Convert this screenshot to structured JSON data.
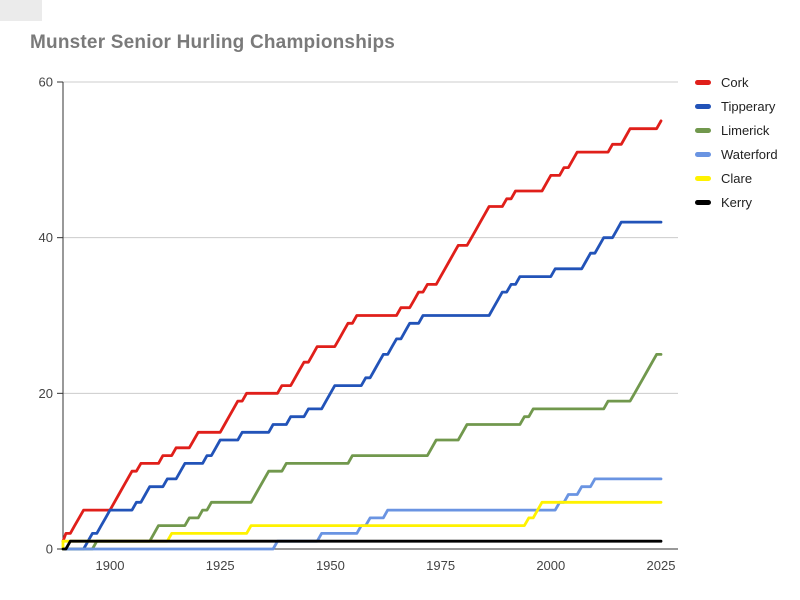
{
  "chart_data": {
    "type": "line",
    "title": "Munster Senior Hurling Championships",
    "xlabel": "",
    "ylabel": "",
    "x_ticks": [
      1900,
      1925,
      1950,
      1975,
      2000,
      2025
    ],
    "y_ticks": [
      0,
      20,
      40,
      60
    ],
    "x_range": [
      1889,
      2028
    ],
    "y_range": [
      0,
      60
    ],
    "grid": {
      "horizontal": true,
      "vertical": false,
      "color": "#cccccc",
      "baseline_color": "#333333"
    },
    "legend_position": "right",
    "series": [
      {
        "name": "Cork",
        "color": "#e01f1a",
        "final_total": 55,
        "win_years": [
          1888,
          1890,
          1892,
          1893,
          1894,
          1901,
          1902,
          1903,
          1904,
          1905,
          1907,
          1912,
          1915,
          1919,
          1920,
          1926,
          1927,
          1928,
          1929,
          1931,
          1939,
          1942,
          1943,
          1944,
          1946,
          1947,
          1952,
          1953,
          1954,
          1956,
          1966,
          1969,
          1970,
          1972,
          1975,
          1976,
          1977,
          1978,
          1979,
          1982,
          1983,
          1984,
          1985,
          1986,
          1990,
          1992,
          1999,
          2000,
          2003,
          2005,
          2006,
          2014,
          2017,
          2018,
          2025
        ]
      },
      {
        "name": "Tipperary",
        "color": "#2253b8",
        "final_total": 42,
        "win_years": [
          1895,
          1896,
          1898,
          1899,
          1900,
          1906,
          1908,
          1909,
          1913,
          1916,
          1917,
          1922,
          1924,
          1925,
          1930,
          1937,
          1941,
          1945,
          1949,
          1950,
          1951,
          1958,
          1960,
          1961,
          1962,
          1964,
          1965,
          1967,
          1968,
          1971,
          1987,
          1988,
          1989,
          1991,
          1993,
          2001,
          2008,
          2009,
          2011,
          2012,
          2015,
          2016
        ]
      },
      {
        "name": "Limerick",
        "color": "#71984d",
        "final_total": 25,
        "win_years": [
          1897,
          1910,
          1911,
          1918,
          1921,
          1923,
          1933,
          1934,
          1935,
          1936,
          1940,
          1955,
          1973,
          1974,
          1980,
          1981,
          1994,
          1996,
          2013,
          2019,
          2020,
          2021,
          2022,
          2023,
          2024
        ]
      },
      {
        "name": "Waterford",
        "color": "#6a94e2",
        "final_total": 9,
        "win_years": [
          1938,
          1948,
          1957,
          1959,
          1963,
          2002,
          2004,
          2007,
          2010
        ]
      },
      {
        "name": "Clare",
        "color": "#fff200",
        "final_total": 6,
        "win_years": [
          1889,
          1914,
          1932,
          1995,
          1997,
          1998
        ]
      },
      {
        "name": "Kerry",
        "color": "#000000",
        "final_total": 1,
        "win_years": [
          1891
        ]
      }
    ]
  },
  "colors": {
    "background": "#ffffff",
    "axis": "#333333",
    "tick_label": "#444444",
    "legend_label": "#222222",
    "title": "#7a7a7a"
  }
}
